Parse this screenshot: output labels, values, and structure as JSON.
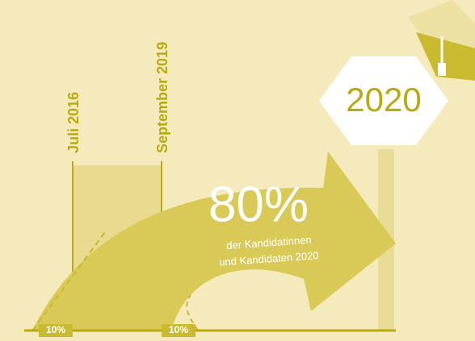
{
  "timeline": {
    "start": "Juli 2016",
    "end": "September 2019",
    "year": "2020"
  },
  "arrow": {
    "percent": "80%",
    "caption_line1": "der Kandidatinnen",
    "caption_line2": "und Kandidaten 2020"
  },
  "bottom_labels": [
    "10%",
    "10%"
  ]
}
